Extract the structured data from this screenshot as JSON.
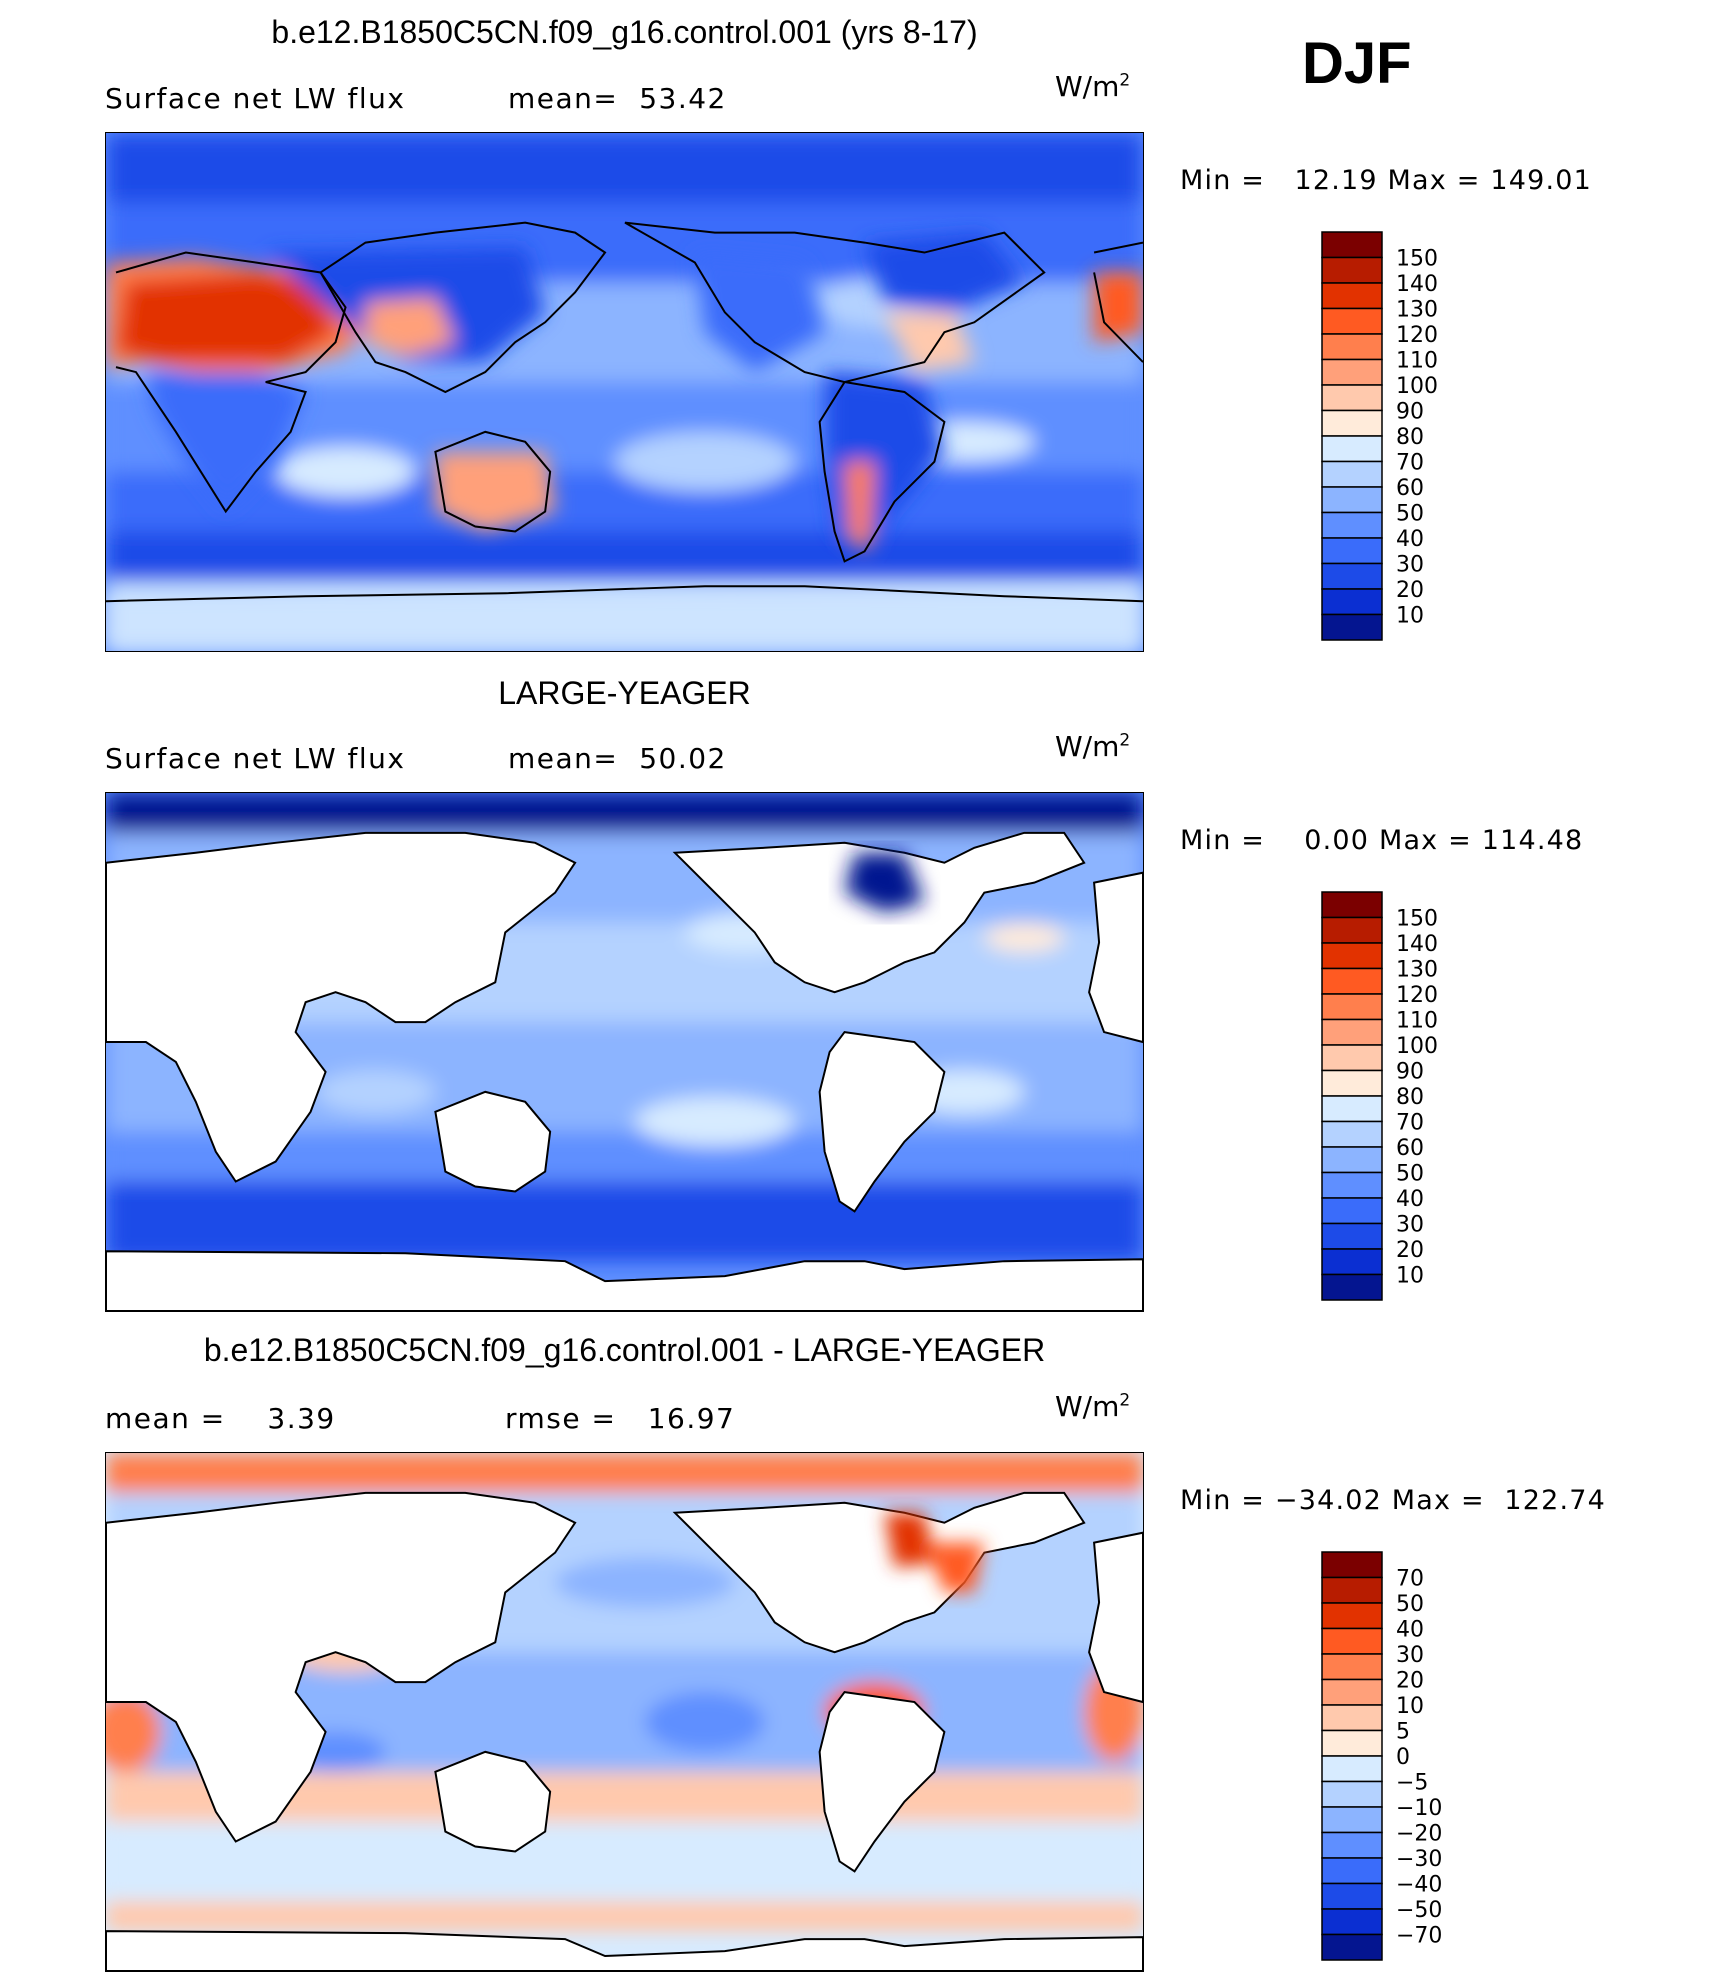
{
  "season": "DJF",
  "panels": [
    {
      "id": "model",
      "title": "b.e12.B1850C5CN.f09_g16.control.001 (yrs 8-17)",
      "left_label": "Surface net LW flux",
      "center_label": "mean=",
      "center_value": "53.42",
      "units_base": "W/m",
      "units_exp": "2",
      "minmax": "Min =   12.19 Max = 149.01",
      "colorbar": {
        "labels": [
          "150",
          "140",
          "130",
          "120",
          "110",
          "100",
          "90",
          "80",
          "70",
          "60",
          "50",
          "40",
          "30",
          "20",
          "10"
        ],
        "colors": [
          "#7b0000",
          "#b71c00",
          "#e23200",
          "#ff5a22",
          "#ff7f4d",
          "#ffa07a",
          "#ffc9ad",
          "#ffebda",
          "#d7ebff",
          "#b4d2ff",
          "#8cb4ff",
          "#5f8fff",
          "#3a6cfa",
          "#1d4be8",
          "#0b2fd2",
          "#041590"
        ]
      },
      "map_land_fill": true
    },
    {
      "id": "obs",
      "title": "LARGE-YEAGER",
      "left_label": "Surface net LW flux",
      "center_label": "mean=",
      "center_value": "50.02",
      "units_base": "W/m",
      "units_exp": "2",
      "minmax": "Min =    0.00 Max = 114.48",
      "colorbar": {
        "labels": [
          "150",
          "140",
          "130",
          "120",
          "110",
          "100",
          "90",
          "80",
          "70",
          "60",
          "50",
          "40",
          "30",
          "20",
          "10"
        ],
        "colors": [
          "#7b0000",
          "#b71c00",
          "#e23200",
          "#ff5a22",
          "#ff7f4d",
          "#ffa07a",
          "#ffc9ad",
          "#ffebda",
          "#d7ebff",
          "#b4d2ff",
          "#8cb4ff",
          "#5f8fff",
          "#3a6cfa",
          "#1d4be8",
          "#0b2fd2",
          "#041590"
        ]
      },
      "map_land_fill": false
    },
    {
      "id": "diff",
      "title": "b.e12.B1850C5CN.f09_g16.control.001 - LARGE-YEAGER",
      "left_label": "mean =",
      "left_value": "3.39",
      "center_label": "rmse =",
      "center_value": "16.97",
      "units_base": "W/m",
      "units_exp": "2",
      "minmax": "Min = −34.02 Max =  122.74",
      "colorbar": {
        "labels": [
          "70",
          "50",
          "40",
          "30",
          "20",
          "10",
          "5",
          "0",
          "−5",
          "−10",
          "−20",
          "−30",
          "−40",
          "−50",
          "−70"
        ],
        "colors": [
          "#7b0000",
          "#b71c00",
          "#e23200",
          "#ff5a22",
          "#ff7f4d",
          "#ffa07a",
          "#ffc9ad",
          "#ffebda",
          "#d7ebff",
          "#b4d2ff",
          "#8cb4ff",
          "#5f8fff",
          "#3a6cfa",
          "#1d4be8",
          "#0b2fd2",
          "#041590"
        ]
      },
      "map_land_fill": false
    }
  ]
}
